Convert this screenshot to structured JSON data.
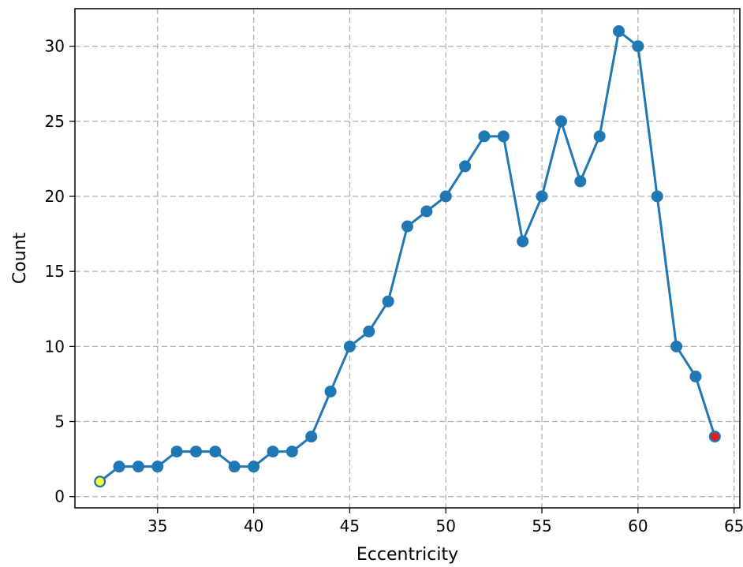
{
  "chart_data": {
    "type": "line",
    "title": "",
    "xlabel": "Eccentricity",
    "ylabel": "Count",
    "xlim": [
      30.7,
      65.3
    ],
    "ylim": [
      -0.75,
      32.5
    ],
    "xticks": [
      35,
      40,
      45,
      50,
      55,
      60,
      65
    ],
    "yticks": [
      0,
      5,
      10,
      15,
      20,
      25,
      30
    ],
    "grid": true,
    "series": [
      {
        "color": "#1f77b4",
        "marker": "circle",
        "x": [
          32,
          33,
          34,
          35,
          36,
          37,
          38,
          39,
          40,
          41,
          42,
          43,
          44,
          45,
          46,
          47,
          48,
          49,
          50,
          51,
          52,
          53,
          54,
          55,
          56,
          57,
          58,
          59,
          60,
          61,
          62,
          63,
          64
        ],
        "y": [
          1,
          2,
          2,
          2,
          3,
          3,
          3,
          2,
          2,
          3,
          3,
          4,
          7,
          10,
          11,
          13,
          18,
          19,
          20,
          22,
          24,
          24,
          17,
          20,
          25,
          21,
          24,
          31,
          30,
          20,
          10,
          8,
          4
        ]
      }
    ],
    "highlights": [
      {
        "x": 32,
        "y": 1,
        "color": "#ffff33"
      },
      {
        "x": 64,
        "y": 4,
        "color": "#e41a1c"
      }
    ]
  }
}
